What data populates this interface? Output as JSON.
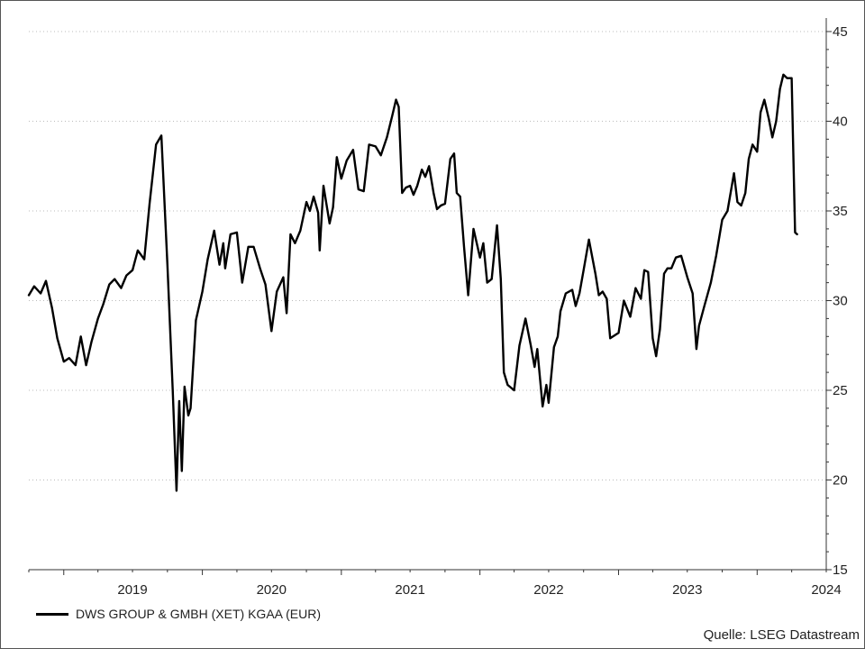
{
  "chart_data": {
    "type": "line",
    "title": "",
    "xlabel": "",
    "ylabel": "",
    "ylim": [
      15,
      45
    ],
    "y_ticks": [
      15,
      20,
      25,
      30,
      35,
      40,
      45
    ],
    "y_axis_side": "right",
    "x_ticks": [
      "2019",
      "2020",
      "2021",
      "2022",
      "2023",
      "2024"
    ],
    "x_range": [
      "2018-10",
      "2024-07"
    ],
    "grid": "horizontal dotted",
    "legend_placement": "bottom-left",
    "series": [
      {
        "name": "DWS GROUP & GMBH (XET) KGAA (EUR)",
        "color": "#000000",
        "points": [
          [
            "2018-10-01",
            30.3
          ],
          [
            "2018-10-15",
            30.8
          ],
          [
            "2018-11-01",
            30.4
          ],
          [
            "2018-11-15",
            31.1
          ],
          [
            "2018-12-01",
            29.6
          ],
          [
            "2018-12-15",
            27.9
          ],
          [
            "2019-01-01",
            26.6
          ],
          [
            "2019-01-15",
            26.8
          ],
          [
            "2019-02-01",
            26.4
          ],
          [
            "2019-02-15",
            28.0
          ],
          [
            "2019-03-01",
            26.4
          ],
          [
            "2019-03-15",
            27.7
          ],
          [
            "2019-04-01",
            29.0
          ],
          [
            "2019-04-15",
            29.8
          ],
          [
            "2019-05-01",
            30.9
          ],
          [
            "2019-05-15",
            31.2
          ],
          [
            "2019-06-01",
            30.7
          ],
          [
            "2019-06-15",
            31.4
          ],
          [
            "2019-07-01",
            31.7
          ],
          [
            "2019-07-15",
            32.8
          ],
          [
            "2019-08-01",
            32.3
          ],
          [
            "2019-08-15",
            35.4
          ],
          [
            "2019-09-01",
            38.7
          ],
          [
            "2019-09-15",
            39.2
          ],
          [
            "2019-10-01",
            32.0
          ],
          [
            "2019-10-15",
            25.0
          ],
          [
            "2019-10-25",
            19.4
          ],
          [
            "2019-11-01",
            24.4
          ],
          [
            "2019-11-08",
            20.5
          ],
          [
            "2019-11-15",
            25.2
          ],
          [
            "2019-11-25",
            23.6
          ],
          [
            "2019-12-01",
            24.0
          ],
          [
            "2019-12-15",
            28.9
          ],
          [
            "2020-01-01",
            30.5
          ],
          [
            "2020-01-15",
            32.3
          ],
          [
            "2020-02-01",
            33.9
          ],
          [
            "2020-02-15",
            32.0
          ],
          [
            "2020-02-25",
            33.2
          ],
          [
            "2020-03-01",
            31.8
          ],
          [
            "2020-03-15",
            33.7
          ],
          [
            "2020-04-01",
            33.8
          ],
          [
            "2020-04-15",
            31.0
          ],
          [
            "2020-05-01",
            33.0
          ],
          [
            "2020-05-15",
            33.0
          ],
          [
            "2020-06-01",
            31.8
          ],
          [
            "2020-06-15",
            30.9
          ],
          [
            "2020-07-01",
            28.3
          ],
          [
            "2020-07-15",
            30.5
          ],
          [
            "2020-08-01",
            31.3
          ],
          [
            "2020-08-10",
            29.3
          ],
          [
            "2020-08-20",
            33.7
          ],
          [
            "2020-09-01",
            33.2
          ],
          [
            "2020-09-15",
            33.9
          ],
          [
            "2020-10-01",
            35.5
          ],
          [
            "2020-10-10",
            35.0
          ],
          [
            "2020-10-20",
            35.8
          ],
          [
            "2020-11-01",
            34.9
          ],
          [
            "2020-11-05",
            32.8
          ],
          [
            "2020-11-15",
            36.4
          ],
          [
            "2020-12-01",
            34.3
          ],
          [
            "2020-12-10",
            35.2
          ],
          [
            "2020-12-20",
            38.0
          ],
          [
            "2021-01-01",
            36.8
          ],
          [
            "2021-01-15",
            37.8
          ],
          [
            "2021-02-01",
            38.4
          ],
          [
            "2021-02-15",
            36.2
          ],
          [
            "2021-03-01",
            36.1
          ],
          [
            "2021-03-15",
            38.7
          ],
          [
            "2021-04-01",
            38.6
          ],
          [
            "2021-04-15",
            38.1
          ],
          [
            "2021-05-01",
            39.1
          ],
          [
            "2021-05-15",
            40.3
          ],
          [
            "2021-05-25",
            41.2
          ],
          [
            "2021-06-01",
            40.8
          ],
          [
            "2021-06-10",
            36.0
          ],
          [
            "2021-06-20",
            36.3
          ],
          [
            "2021-07-01",
            36.4
          ],
          [
            "2021-07-10",
            35.9
          ],
          [
            "2021-07-20",
            36.4
          ],
          [
            "2021-08-01",
            37.3
          ],
          [
            "2021-08-10",
            36.9
          ],
          [
            "2021-08-20",
            37.5
          ],
          [
            "2021-09-01",
            36.0
          ],
          [
            "2021-09-10",
            35.1
          ],
          [
            "2021-09-20",
            35.3
          ],
          [
            "2021-10-01",
            35.4
          ],
          [
            "2021-10-15",
            37.9
          ],
          [
            "2021-10-25",
            38.2
          ],
          [
            "2021-11-01",
            36.0
          ],
          [
            "2021-11-10",
            35.8
          ],
          [
            "2021-11-20",
            33.0
          ],
          [
            "2021-12-01",
            30.3
          ],
          [
            "2021-12-15",
            34.0
          ],
          [
            "2022-01-01",
            32.4
          ],
          [
            "2022-01-10",
            33.2
          ],
          [
            "2022-01-20",
            31.0
          ],
          [
            "2022-02-01",
            31.2
          ],
          [
            "2022-02-15",
            34.2
          ],
          [
            "2022-02-25",
            31.2
          ],
          [
            "2022-03-05",
            26.0
          ],
          [
            "2022-03-15",
            25.3
          ],
          [
            "2022-04-01",
            25.0
          ],
          [
            "2022-04-15",
            27.5
          ],
          [
            "2022-05-01",
            29.0
          ],
          [
            "2022-05-15",
            27.5
          ],
          [
            "2022-05-25",
            26.3
          ],
          [
            "2022-06-01",
            27.3
          ],
          [
            "2022-06-15",
            24.1
          ],
          [
            "2022-06-25",
            25.3
          ],
          [
            "2022-07-01",
            24.3
          ],
          [
            "2022-07-15",
            27.4
          ],
          [
            "2022-07-25",
            28.0
          ],
          [
            "2022-08-01",
            29.4
          ],
          [
            "2022-08-15",
            30.4
          ],
          [
            "2022-09-01",
            30.6
          ],
          [
            "2022-09-10",
            29.7
          ],
          [
            "2022-09-20",
            30.4
          ],
          [
            "2022-10-01",
            31.7
          ],
          [
            "2022-10-15",
            33.4
          ],
          [
            "2022-11-01",
            31.5
          ],
          [
            "2022-11-10",
            30.3
          ],
          [
            "2022-11-20",
            30.5
          ],
          [
            "2022-12-01",
            30.1
          ],
          [
            "2022-12-10",
            27.9
          ],
          [
            "2023-01-01",
            28.2
          ],
          [
            "2023-01-15",
            30.0
          ],
          [
            "2023-02-01",
            29.1
          ],
          [
            "2023-02-15",
            30.7
          ],
          [
            "2023-03-01",
            30.1
          ],
          [
            "2023-03-10",
            31.7
          ],
          [
            "2023-03-20",
            31.6
          ],
          [
            "2023-04-01",
            27.9
          ],
          [
            "2023-04-10",
            26.9
          ],
          [
            "2023-04-20",
            28.4
          ],
          [
            "2023-05-01",
            31.5
          ],
          [
            "2023-05-10",
            31.8
          ],
          [
            "2023-05-20",
            31.8
          ],
          [
            "2023-06-01",
            32.4
          ],
          [
            "2023-06-15",
            32.5
          ],
          [
            "2023-07-01",
            31.3
          ],
          [
            "2023-07-15",
            30.4
          ],
          [
            "2023-07-25",
            27.3
          ],
          [
            "2023-08-01",
            28.6
          ],
          [
            "2023-08-15",
            29.7
          ],
          [
            "2023-09-01",
            31.0
          ],
          [
            "2023-09-15",
            32.5
          ],
          [
            "2023-10-01",
            34.5
          ],
          [
            "2023-10-15",
            35.0
          ],
          [
            "2023-11-01",
            37.1
          ],
          [
            "2023-11-10",
            35.5
          ],
          [
            "2023-11-20",
            35.3
          ],
          [
            "2023-12-01",
            36.0
          ],
          [
            "2023-12-10",
            37.9
          ],
          [
            "2023-12-20",
            38.7
          ],
          [
            "2024-01-01",
            38.3
          ],
          [
            "2024-01-10",
            40.5
          ],
          [
            "2024-01-20",
            41.2
          ],
          [
            "2024-02-01",
            40.1
          ],
          [
            "2024-02-10",
            39.1
          ],
          [
            "2024-02-20",
            40.0
          ],
          [
            "2024-03-01",
            41.8
          ],
          [
            "2024-03-10",
            42.6
          ],
          [
            "2024-03-20",
            42.4
          ],
          [
            "2024-04-01",
            42.4
          ],
          [
            "2024-04-10",
            33.8
          ],
          [
            "2024-04-15",
            33.7
          ]
        ]
      }
    ]
  },
  "legend": {
    "label": "DWS GROUP & GMBH (XET) KGAA (EUR)"
  },
  "source": "Quelle: LSEG Datastream"
}
